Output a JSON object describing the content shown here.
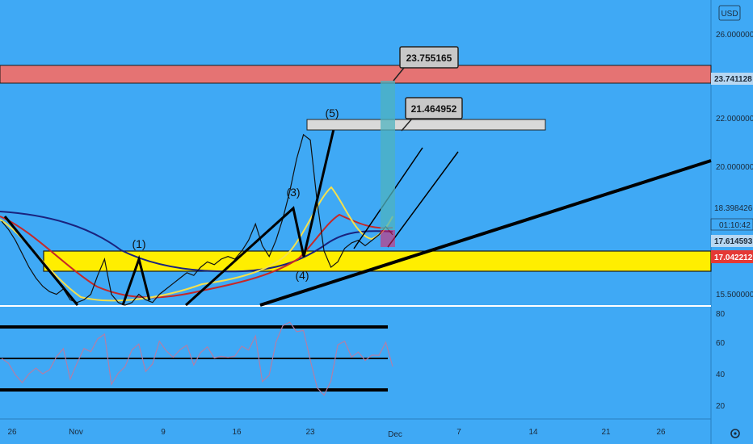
{
  "chart_data": {
    "type": "line",
    "currency": "USD",
    "price_axis": {
      "ticks": [
        "26.000000",
        "22.000000",
        "20.000000",
        "15.500000"
      ],
      "badges": [
        {
          "text": "23.741128",
          "bg": "#b7d7f2",
          "fg": "#1b2a3a"
        },
        {
          "text": "18.398426",
          "bg": "#3fa9f5",
          "fg": "#1b2a3a"
        },
        {
          "text": "01:10:42",
          "bg": "#3fa9f5",
          "fg": "#1b2a3a"
        },
        {
          "text": "17.614593",
          "bg": "#b7d7f2",
          "fg": "#1b2a3a"
        },
        {
          "text": "17.042212",
          "bg": "#e53935",
          "fg": "#ffffff"
        }
      ]
    },
    "rsi_axis": {
      "ticks": [
        "80",
        "60",
        "40",
        "20"
      ]
    },
    "time_axis": {
      "ticks": [
        "26",
        "Nov",
        "9",
        "16",
        "23",
        "Dec",
        "7",
        "14",
        "21",
        "26"
      ]
    },
    "annotations": {
      "callouts": [
        "23.755165",
        "21.464952"
      ],
      "waves": [
        "(1)",
        "(3)",
        "(4)",
        "(5)"
      ]
    },
    "price_series_close": [
      18.3,
      18.0,
      17.6,
      17.1,
      16.6,
      16.2,
      15.9,
      15.7,
      15.6,
      15.8,
      15.4,
      15.3,
      15.4,
      15.6,
      16.3,
      16.9,
      15.6,
      15.3,
      15.2,
      15.3,
      15.6,
      15.4,
      15.3,
      15.6,
      15.8,
      16.0,
      16.2,
      16.4,
      16.3,
      16.6,
      16.8,
      16.7,
      16.9,
      17.0,
      16.9,
      17.2,
      17.6,
      18.2,
      17.4,
      17.0,
      17.6,
      18.4,
      19.4,
      20.6,
      21.5,
      21.3,
      19.0,
      17.2,
      16.6,
      16.8,
      17.3,
      17.5,
      17.6,
      17.4,
      17.6,
      17.8,
      18.1,
      17.8
    ],
    "colors": {
      "background": "#3fa9f5",
      "resistance_zone": "#e57373",
      "support_zone": "#ffee00",
      "price": "#111111",
      "ema_fast": "#f4e04d",
      "ema_mid": "#c62828",
      "ema_slow": "#1a237e",
      "rsi": "#b07fa8"
    }
  }
}
